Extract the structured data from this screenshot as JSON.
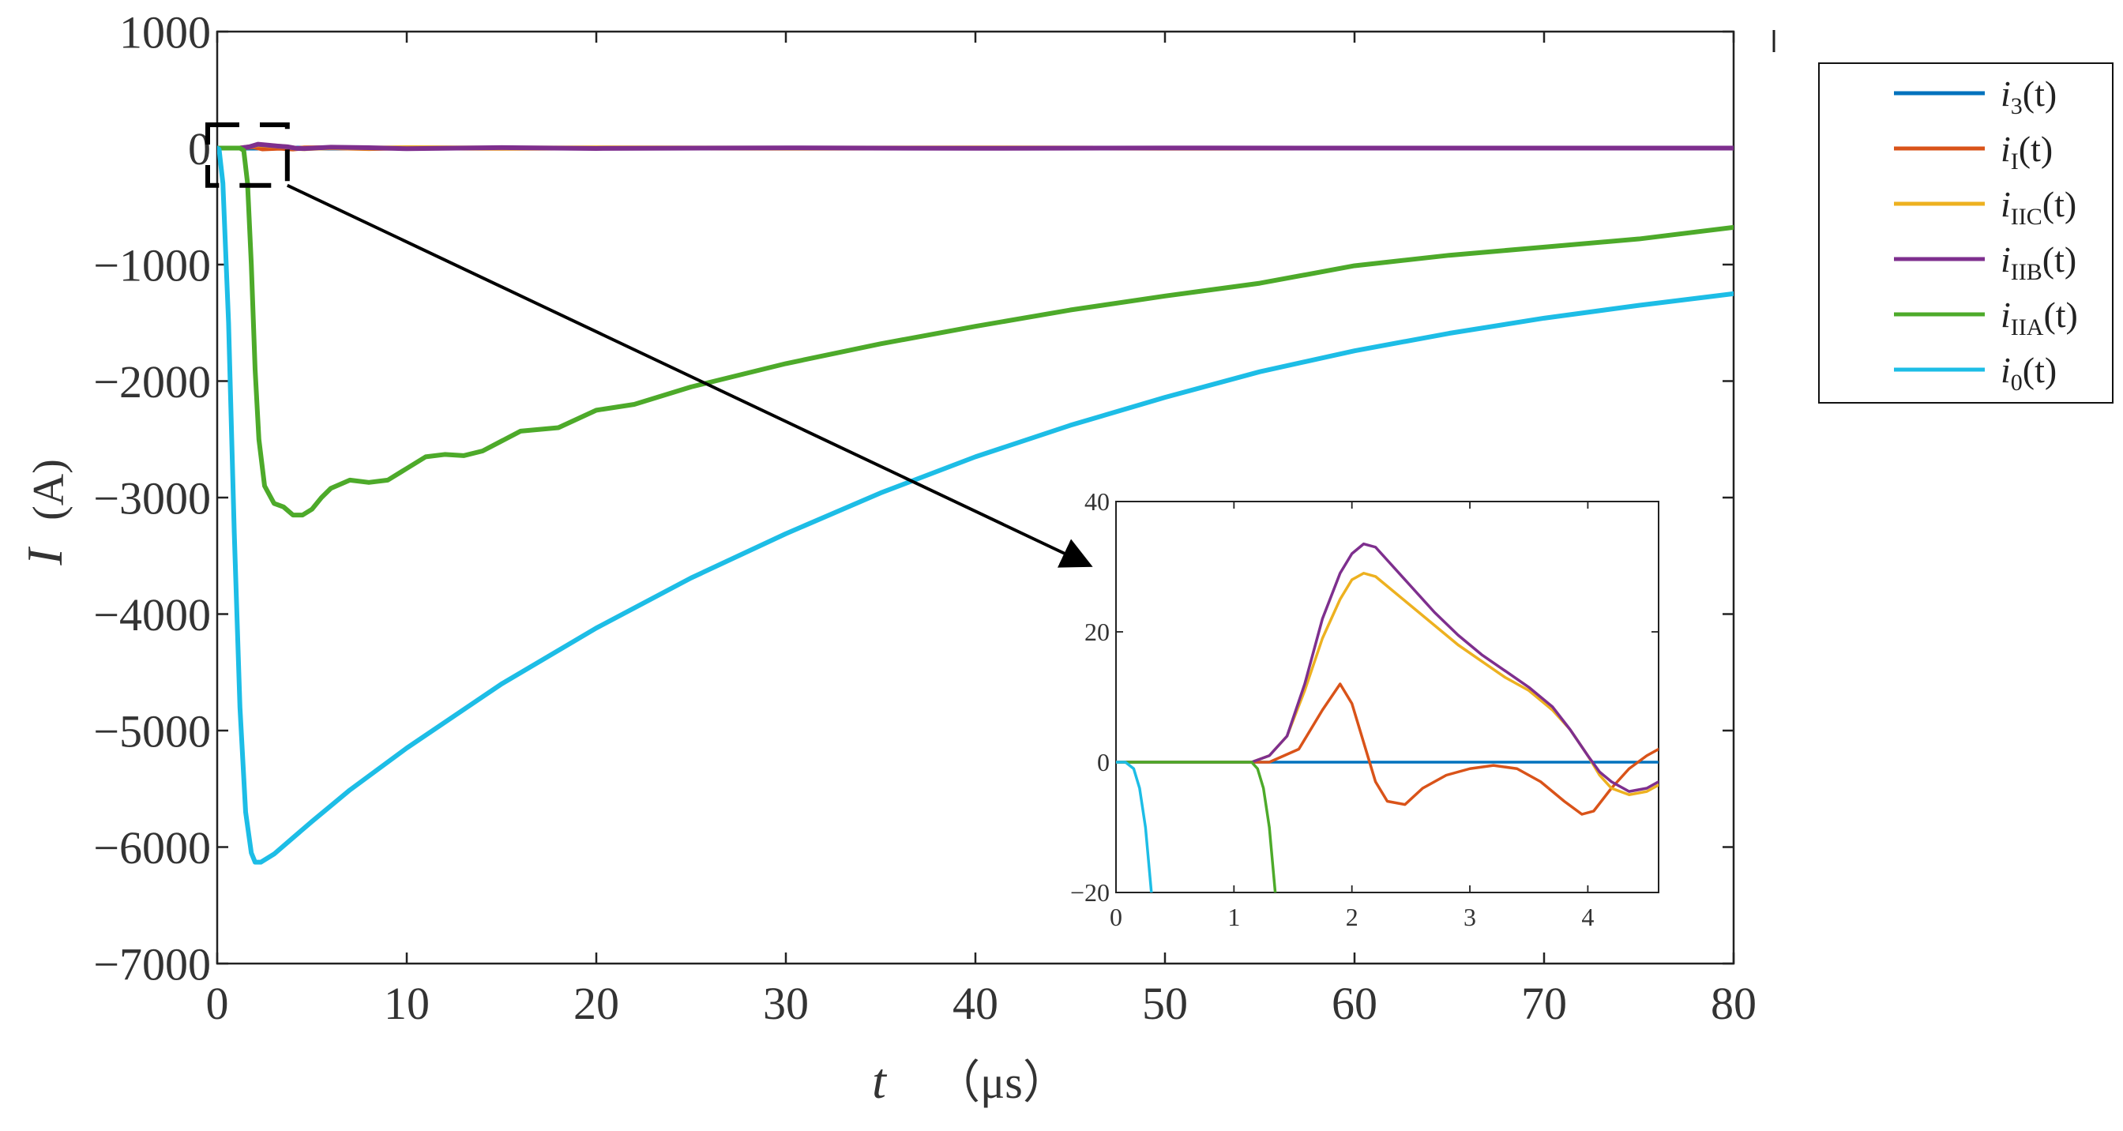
{
  "chart_data": [
    {
      "type": "line",
      "id": "main",
      "xlabel": "t",
      "xunit": "（μs）",
      "ylabel": "I",
      "yunit": "(A)",
      "xlim": [
        0,
        80
      ],
      "ylim": [
        -7000,
        1000
      ],
      "xticks": [
        0,
        10,
        20,
        30,
        40,
        50,
        60,
        70,
        80
      ],
      "yticks": [
        1000,
        0,
        -1000,
        -2000,
        -3000,
        -4000,
        -5000,
        -6000,
        -7000
      ],
      "xtick_labels": [
        "0",
        "10",
        "20",
        "30",
        "40",
        "50",
        "60",
        "70",
        "80"
      ],
      "ytick_labels": [
        "1000",
        "0",
        "-1000",
        "-2000",
        "-3000",
        "-4000",
        "-5000",
        "-6000",
        "-7000"
      ],
      "grid": false,
      "legend_position": "outside right, top",
      "series": [
        {
          "key": "i3",
          "legend": {
            "base": "i",
            "sub": "3",
            "arg": "(t)"
          },
          "color": "#0072bd",
          "x": [
            0,
            80
          ],
          "y": [
            0,
            0
          ]
        },
        {
          "key": "iI",
          "legend": {
            "base": "i",
            "sub": "I",
            "arg": "(t)"
          },
          "color": "#d95319",
          "x": [
            0,
            1.2,
            1.9,
            2.4,
            3.3,
            4.0,
            4.6,
            6,
            8,
            10,
            15,
            20,
            30,
            40,
            50,
            60,
            70,
            80
          ],
          "y": [
            0,
            0,
            12,
            -7,
            -1,
            -8,
            2,
            3,
            -4,
            2,
            -2,
            1,
            -1,
            1,
            -1,
            0,
            0,
            0
          ]
        },
        {
          "key": "iIIC",
          "legend": {
            "base": "i",
            "sub": "IIC",
            "arg": "(t)"
          },
          "color": "#edb120",
          "x": [
            0,
            1.2,
            1.7,
            2.15,
            2.6,
            3.2,
            3.7,
            4.2,
            4.6,
            6,
            8,
            10,
            15,
            20,
            30,
            40,
            50,
            60,
            70,
            80
          ],
          "y": [
            0,
            0,
            10,
            29,
            23,
            16,
            10,
            -3,
            -5,
            4,
            0,
            3,
            0,
            2,
            0,
            1,
            0,
            0,
            0,
            0
          ]
        },
        {
          "key": "iIIB",
          "legend": {
            "base": "i",
            "sub": "IIB",
            "arg": "(t)"
          },
          "color": "#7e2f8e",
          "x": [
            0,
            1.2,
            1.7,
            2.15,
            2.6,
            3.2,
            3.7,
            4.2,
            4.6,
            6,
            8,
            10,
            15,
            20,
            30,
            40,
            50,
            60,
            70,
            80
          ],
          "y": [
            0,
            0,
            11,
            33,
            26,
            17,
            11,
            -3,
            -4,
            8,
            3,
            -5,
            4,
            -3,
            2,
            -2,
            1,
            0,
            0,
            0
          ]
        },
        {
          "key": "iIIA",
          "legend": {
            "base": "i",
            "sub": "IIA",
            "arg": "(t)"
          },
          "color": "#4daa2a",
          "x": [
            0,
            1.2,
            1.4,
            1.6,
            1.8,
            2.0,
            2.2,
            2.5,
            3.0,
            3.5,
            4.0,
            4.5,
            5.0,
            5.5,
            6.0,
            7.0,
            8.0,
            9.0,
            10.0,
            11.0,
            12.0,
            13.0,
            14.0,
            16.0,
            18.0,
            20.0,
            22.0,
            25.0,
            30.0,
            35.0,
            40.0,
            45.0,
            50.0,
            55.0,
            60.0,
            65.0,
            70.0,
            75.0,
            80.0
          ],
          "y": [
            0,
            0,
            -20,
            -300,
            -1000,
            -1900,
            -2500,
            -2900,
            -3050,
            -3080,
            -3150,
            -3150,
            -3100,
            -3000,
            -2920,
            -2850,
            -2870,
            -2850,
            -2750,
            -2650,
            -2630,
            -2640,
            -2600,
            -2430,
            -2400,
            -2250,
            -2200,
            -2050,
            -1850,
            -1680,
            -1530,
            -1390,
            -1270,
            -1160,
            -1010,
            -920,
            -850,
            -780,
            -680
          ]
        },
        {
          "key": "i0",
          "legend": {
            "base": "i",
            "sub": "0",
            "arg": "(t)"
          },
          "color": "#1dbde6",
          "x": [
            0,
            0.1,
            0.3,
            0.6,
            0.9,
            1.2,
            1.5,
            1.8,
            2.0,
            2.3,
            3,
            4,
            5,
            7,
            10,
            15,
            20,
            25,
            30,
            35,
            40,
            45,
            50,
            55,
            60,
            65,
            70,
            75,
            80
          ],
          "y": [
            0,
            -10,
            -300,
            -1500,
            -3300,
            -4800,
            -5700,
            -6050,
            -6130,
            -6130,
            -6060,
            -5920,
            -5780,
            -5510,
            -5150,
            -4600,
            -4120,
            -3690,
            -3310,
            -2960,
            -2650,
            -2380,
            -2140,
            -1920,
            -1740,
            -1590,
            -1460,
            -1350,
            -1250
          ]
        }
      ]
    },
    {
      "type": "line",
      "id": "inset",
      "xlim": [
        0,
        4.6
      ],
      "ylim": [
        -20,
        40
      ],
      "xticks": [
        0,
        1,
        2,
        3,
        4
      ],
      "yticks": [
        40,
        20,
        0,
        -20
      ],
      "xtick_labels": [
        "0",
        "1",
        "2",
        "3",
        "4"
      ],
      "ytick_labels": [
        "40",
        "20",
        "0",
        "-20"
      ],
      "grid": false,
      "zoom_box": {
        "xlim": [
          -0.5,
          3.7
        ],
        "ylim": [
          -320,
          200
        ]
      },
      "series": [
        {
          "key": "i3",
          "color": "#0072bd",
          "x": [
            0,
            4.6
          ],
          "y": [
            0,
            0
          ]
        },
        {
          "key": "iI",
          "color": "#d95319",
          "x": [
            0,
            1.3,
            1.55,
            1.75,
            1.9,
            2.0,
            2.1,
            2.2,
            2.3,
            2.45,
            2.6,
            2.8,
            3.0,
            3.2,
            3.4,
            3.6,
            3.8,
            3.95,
            4.05,
            4.2,
            4.35,
            4.5,
            4.6
          ],
          "y": [
            0,
            0,
            2,
            8,
            12,
            9,
            3,
            -3,
            -6,
            -6.5,
            -4,
            -2,
            -1,
            -0.5,
            -1,
            -3,
            -6,
            -8,
            -7.5,
            -4,
            -1,
            1,
            2
          ]
        },
        {
          "key": "iIIC",
          "color": "#edb120",
          "x": [
            0,
            1.0,
            1.15,
            1.3,
            1.45,
            1.6,
            1.75,
            1.9,
            2.0,
            2.1,
            2.2,
            2.3,
            2.5,
            2.7,
            2.9,
            3.1,
            3.3,
            3.5,
            3.7,
            3.85,
            4.0,
            4.1,
            4.2,
            4.35,
            4.5,
            4.6
          ],
          "y": [
            0,
            0,
            0,
            1,
            4,
            11,
            19,
            25,
            28,
            29,
            28.5,
            27,
            24,
            21,
            18,
            15.5,
            13,
            11,
            8,
            5,
            1,
            -2,
            -4,
            -5,
            -4.5,
            -3.5
          ]
        },
        {
          "key": "iIIB",
          "color": "#7e2f8e",
          "x": [
            0,
            1.0,
            1.15,
            1.3,
            1.45,
            1.6,
            1.75,
            1.9,
            2.0,
            2.1,
            2.2,
            2.3,
            2.5,
            2.7,
            2.9,
            3.1,
            3.3,
            3.5,
            3.7,
            3.85,
            4.0,
            4.1,
            4.2,
            4.35,
            4.5,
            4.6
          ],
          "y": [
            0,
            0,
            0,
            1,
            4,
            12,
            22,
            29,
            32,
            33.5,
            33,
            31,
            27,
            23,
            19.5,
            16.5,
            14,
            11.5,
            8.5,
            5,
            1,
            -1.5,
            -3,
            -4.5,
            -4,
            -3
          ]
        },
        {
          "key": "iIIA",
          "color": "#4daa2a",
          "x": [
            0,
            1.15,
            1.2,
            1.25,
            1.3,
            1.35,
            1.4
          ],
          "y": [
            0,
            0,
            -1,
            -4,
            -10,
            -20,
            -32
          ]
        },
        {
          "key": "i0",
          "color": "#1dbde6",
          "x": [
            0,
            0.08,
            0.15,
            0.2,
            0.25,
            0.3,
            0.33
          ],
          "y": [
            0,
            0,
            -1,
            -4,
            -10,
            -20,
            -30
          ]
        }
      ]
    }
  ]
}
